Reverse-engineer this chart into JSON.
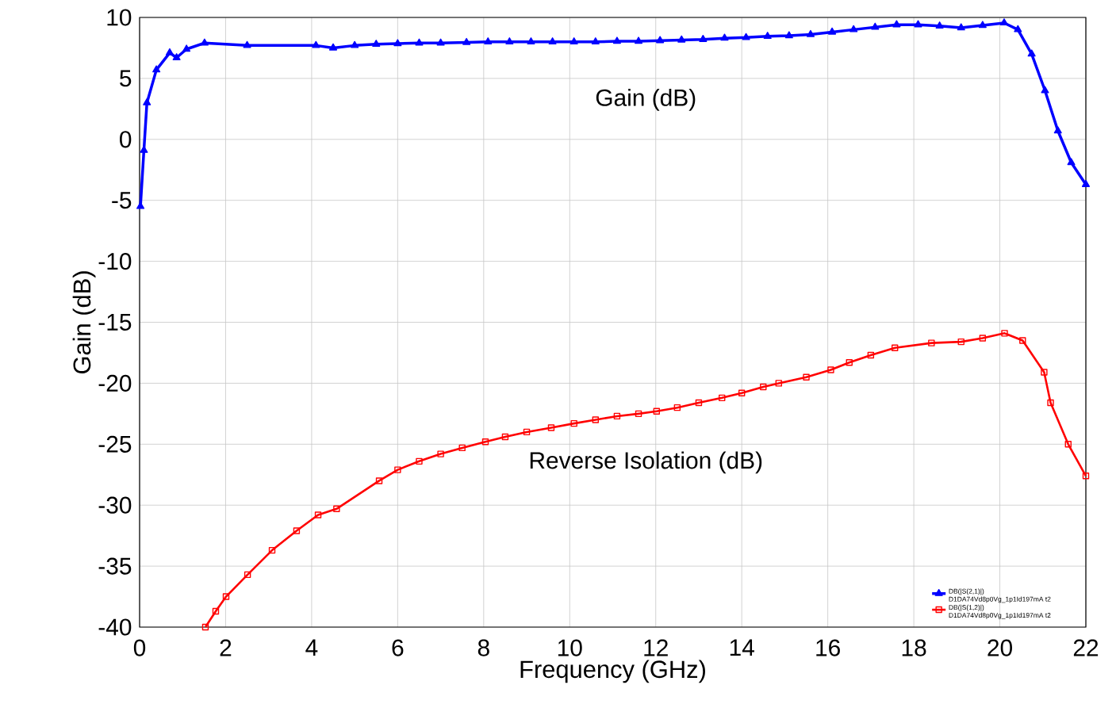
{
  "chart_data": {
    "type": "line",
    "xlabel": "Frequency (GHz)",
    "ylabel": "Gain (dB)",
    "xlim": [
      0,
      22
    ],
    "ylim": [
      -40,
      10
    ],
    "xticks": [
      0,
      2,
      4,
      6,
      8,
      10,
      12,
      14,
      16,
      18,
      20,
      22
    ],
    "yticks": [
      -40,
      -35,
      -30,
      -25,
      -20,
      -15,
      -10,
      -5,
      0,
      5,
      10
    ],
    "grid": true,
    "legend": "bottom right",
    "annotations": [
      "Gain (dB)",
      "Reverse Isolation (dB)"
    ],
    "series": [
      {
        "name": "DB(|S(2,1)|) D1DA74Vd8p0Vg_1p1Id197mA t2",
        "color": "#0000ff",
        "marker": "triangle",
        "x": [
          0.02,
          0.1,
          0.17,
          0.39,
          0.7,
          0.86,
          1.09,
          1.51,
          2.5,
          4.1,
          4.5,
          5.0,
          5.5,
          6.0,
          6.5,
          7.0,
          7.6,
          8.1,
          8.6,
          9.1,
          9.6,
          10.1,
          10.6,
          11.1,
          11.6,
          12.1,
          12.6,
          13.1,
          13.6,
          14.1,
          14.6,
          15.1,
          15.6,
          16.1,
          16.6,
          17.1,
          17.6,
          18.1,
          18.6,
          19.1,
          19.6,
          20.1,
          20.42,
          20.74,
          21.05,
          21.35,
          21.66,
          22.0
        ],
        "values": [
          -5.5,
          -0.9,
          3.0,
          5.7,
          7.1,
          6.7,
          7.4,
          7.9,
          7.7,
          7.7,
          7.5,
          7.7,
          7.8,
          7.85,
          7.9,
          7.9,
          7.95,
          8.0,
          8.0,
          8.0,
          8.0,
          8.0,
          8.0,
          8.05,
          8.05,
          8.1,
          8.15,
          8.2,
          8.3,
          8.35,
          8.45,
          8.5,
          8.6,
          8.8,
          9.0,
          9.2,
          9.4,
          9.4,
          9.3,
          9.15,
          9.35,
          9.55,
          9.0,
          7.0,
          4.0,
          0.7,
          -1.9,
          -3.7
        ]
      },
      {
        "name": "DB(|S(1,2)|) D1DA74Vd8p0Vg_1p1Id197mA t2",
        "color": "#ff0000",
        "marker": "square",
        "x": [
          1.53,
          1.77,
          2.01,
          2.51,
          3.08,
          3.65,
          4.15,
          4.58,
          5.57,
          6.0,
          6.5,
          7.0,
          7.5,
          8.04,
          8.5,
          9.0,
          9.57,
          10.1,
          10.6,
          11.1,
          11.6,
          12.02,
          12.5,
          13.0,
          13.54,
          14.0,
          14.5,
          14.86,
          15.5,
          16.07,
          16.5,
          17.0,
          17.56,
          18.41,
          19.1,
          19.6,
          20.11,
          20.53,
          21.03,
          21.18,
          21.59,
          22.0
        ],
        "values": [
          -40,
          -38.7,
          -37.5,
          -35.7,
          -33.7,
          -32.1,
          -30.8,
          -30.3,
          -28.0,
          -27.1,
          -26.4,
          -25.8,
          -25.3,
          -24.8,
          -24.4,
          -24.0,
          -23.65,
          -23.3,
          -23.0,
          -22.7,
          -22.5,
          -22.3,
          -22.0,
          -21.6,
          -21.2,
          -20.8,
          -20.3,
          -20.0,
          -19.5,
          -18.9,
          -18.3,
          -17.7,
          -17.1,
          -16.7,
          -16.6,
          -16.3,
          -15.9,
          -16.5,
          -19.1,
          -21.6,
          -25.0,
          -27.6
        ]
      }
    ]
  }
}
